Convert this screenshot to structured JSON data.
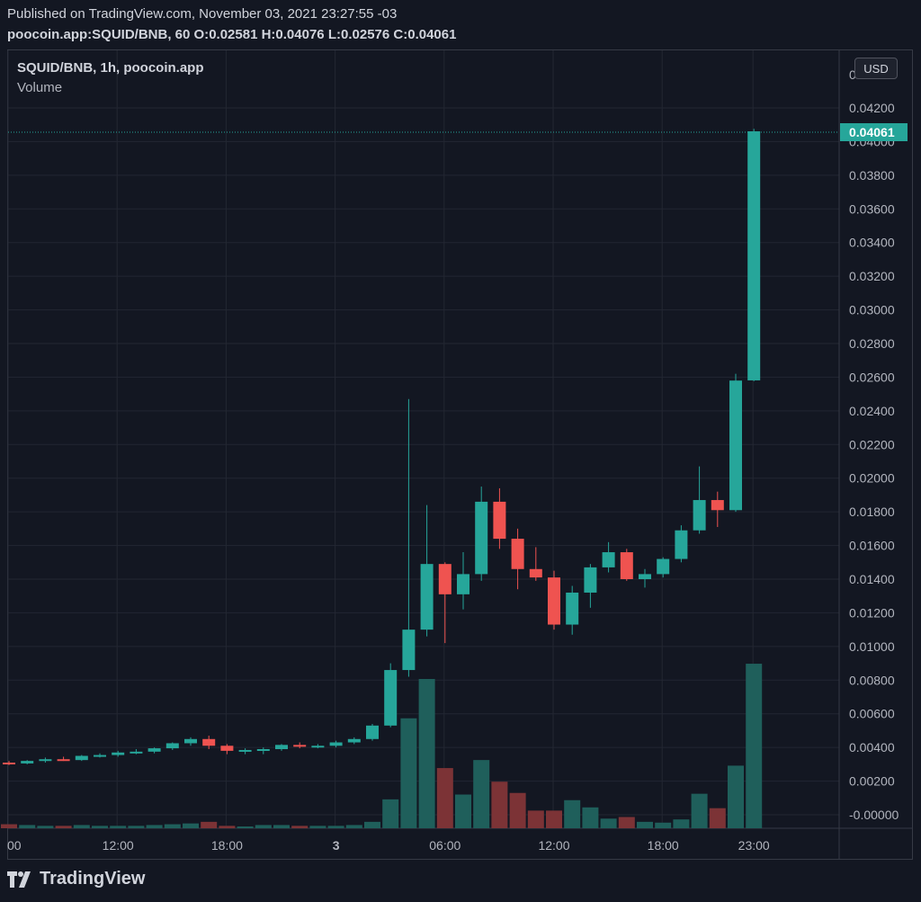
{
  "header": {
    "published": "Published on TradingView.com, November 03, 2021 23:27:55 -03",
    "symbol_line": "poocoin.app:SQUID/BNB, 60",
    "o_label": "O:",
    "o_value": "0.02581",
    "h_label": "H:",
    "h_value": "0.04076",
    "l_label": "L:",
    "l_value": "0.02576",
    "c_label": "C:",
    "c_value": "0.04061"
  },
  "legend": {
    "title": "SQUID/BNB, 1h, poocoin.app",
    "volume": "Volume"
  },
  "currency_button": "USD",
  "brand": "TradingView",
  "colors": {
    "background": "#131722",
    "up": "#26a69a",
    "down": "#ef5350",
    "volume_up": "#1f5f5b",
    "volume_down": "#7c3336",
    "grid": "#232732",
    "price_tag": "#26a69a"
  },
  "chart_data": {
    "type": "candlestick",
    "price_axis": {
      "ticks": [
        "0.04200",
        "0.04000",
        "0.03800",
        "0.03600",
        "0.03400",
        "0.03200",
        "0.03000",
        "0.02800",
        "0.02600",
        "0.02400",
        "0.02200",
        "0.02000",
        "0.01800",
        "0.01600",
        "0.01400",
        "0.01200",
        "0.01000",
        "0.00800",
        "0.00600",
        "0.00400",
        "0.00200",
        "-0.00000"
      ],
      "top_partial_label": "0",
      "last_price": "0.04061",
      "last_price_value": 0.04061
    },
    "time_axis": {
      "ticks": [
        {
          "label": "00",
          "index": 0
        },
        {
          "label": "12:00",
          "index": 6
        },
        {
          "label": "18:00",
          "index": 12
        },
        {
          "label": "3",
          "index": 18
        },
        {
          "label": "06:00",
          "index": 24
        },
        {
          "label": "12:00",
          "index": 30
        },
        {
          "label": "18:00",
          "index": 36
        },
        {
          "label": "23:00",
          "index": 41
        }
      ]
    },
    "candles": [
      {
        "o": 0.0031,
        "h": 0.0032,
        "l": 0.00295,
        "c": 0.00305,
        "v": 0.05,
        "up": false
      },
      {
        "o": 0.00305,
        "h": 0.00325,
        "l": 0.003,
        "c": 0.0032,
        "v": 0.04,
        "up": true
      },
      {
        "o": 0.0032,
        "h": 0.0034,
        "l": 0.0031,
        "c": 0.0033,
        "v": 0.03,
        "up": true
      },
      {
        "o": 0.0033,
        "h": 0.00345,
        "l": 0.0032,
        "c": 0.00325,
        "v": 0.03,
        "up": false
      },
      {
        "o": 0.00325,
        "h": 0.00355,
        "l": 0.0032,
        "c": 0.0035,
        "v": 0.04,
        "up": true
      },
      {
        "o": 0.0035,
        "h": 0.00365,
        "l": 0.0034,
        "c": 0.00355,
        "v": 0.03,
        "up": true
      },
      {
        "o": 0.00355,
        "h": 0.0038,
        "l": 0.00345,
        "c": 0.0037,
        "v": 0.03,
        "up": true
      },
      {
        "o": 0.0037,
        "h": 0.0039,
        "l": 0.0036,
        "c": 0.00375,
        "v": 0.03,
        "up": true
      },
      {
        "o": 0.00375,
        "h": 0.004,
        "l": 0.00365,
        "c": 0.00395,
        "v": 0.04,
        "up": true
      },
      {
        "o": 0.00395,
        "h": 0.0043,
        "l": 0.00385,
        "c": 0.00425,
        "v": 0.05,
        "up": true
      },
      {
        "o": 0.00425,
        "h": 0.0046,
        "l": 0.0041,
        "c": 0.0045,
        "v": 0.06,
        "up": true
      },
      {
        "o": 0.0045,
        "h": 0.0047,
        "l": 0.0039,
        "c": 0.0041,
        "v": 0.08,
        "up": false
      },
      {
        "o": 0.0041,
        "h": 0.0042,
        "l": 0.0036,
        "c": 0.0038,
        "v": 0.03,
        "up": false
      },
      {
        "o": 0.0038,
        "h": 0.00395,
        "l": 0.0036,
        "c": 0.00385,
        "v": 0.02,
        "up": true
      },
      {
        "o": 0.00385,
        "h": 0.004,
        "l": 0.0036,
        "c": 0.0039,
        "v": 0.04,
        "up": true
      },
      {
        "o": 0.0039,
        "h": 0.0042,
        "l": 0.0038,
        "c": 0.00415,
        "v": 0.04,
        "up": true
      },
      {
        "o": 0.00415,
        "h": 0.0043,
        "l": 0.00395,
        "c": 0.00405,
        "v": 0.03,
        "up": false
      },
      {
        "o": 0.00405,
        "h": 0.0042,
        "l": 0.00395,
        "c": 0.0041,
        "v": 0.03,
        "up": true
      },
      {
        "o": 0.0041,
        "h": 0.0044,
        "l": 0.004,
        "c": 0.0043,
        "v": 0.03,
        "up": true
      },
      {
        "o": 0.0043,
        "h": 0.0046,
        "l": 0.0042,
        "c": 0.0045,
        "v": 0.04,
        "up": true
      },
      {
        "o": 0.0045,
        "h": 0.0054,
        "l": 0.0044,
        "c": 0.0053,
        "v": 0.08,
        "up": true
      },
      {
        "o": 0.0053,
        "h": 0.009,
        "l": 0.0052,
        "c": 0.0086,
        "v": 0.36,
        "up": true
      },
      {
        "o": 0.0086,
        "h": 0.0247,
        "l": 0.0082,
        "c": 0.011,
        "v": 1.37,
        "up": true
      },
      {
        "o": 0.011,
        "h": 0.0184,
        "l": 0.0106,
        "c": 0.0149,
        "v": 1.86,
        "up": true
      },
      {
        "o": 0.0149,
        "h": 0.015,
        "l": 0.0102,
        "c": 0.0131,
        "v": 0.75,
        "up": false
      },
      {
        "o": 0.0131,
        "h": 0.0156,
        "l": 0.0122,
        "c": 0.0143,
        "v": 0.42,
        "up": true
      },
      {
        "o": 0.0143,
        "h": 0.0195,
        "l": 0.0139,
        "c": 0.0186,
        "v": 0.85,
        "up": true
      },
      {
        "o": 0.0186,
        "h": 0.0194,
        "l": 0.0158,
        "c": 0.0164,
        "v": 0.58,
        "up": false
      },
      {
        "o": 0.0164,
        "h": 0.017,
        "l": 0.0134,
        "c": 0.0146,
        "v": 0.44,
        "up": false
      },
      {
        "o": 0.0146,
        "h": 0.0159,
        "l": 0.0139,
        "c": 0.0141,
        "v": 0.22,
        "up": false
      },
      {
        "o": 0.0141,
        "h": 0.0145,
        "l": 0.011,
        "c": 0.0113,
        "v": 0.22,
        "up": false
      },
      {
        "o": 0.0113,
        "h": 0.0136,
        "l": 0.0107,
        "c": 0.0132,
        "v": 0.35,
        "up": true
      },
      {
        "o": 0.0132,
        "h": 0.0149,
        "l": 0.0123,
        "c": 0.0147,
        "v": 0.26,
        "up": true
      },
      {
        "o": 0.0147,
        "h": 0.0162,
        "l": 0.0144,
        "c": 0.0156,
        "v": 0.12,
        "up": true
      },
      {
        "o": 0.0156,
        "h": 0.0158,
        "l": 0.0139,
        "c": 0.014,
        "v": 0.14,
        "up": false
      },
      {
        "o": 0.014,
        "h": 0.0146,
        "l": 0.0135,
        "c": 0.0143,
        "v": 0.08,
        "up": true
      },
      {
        "o": 0.0143,
        "h": 0.0153,
        "l": 0.0141,
        "c": 0.0152,
        "v": 0.07,
        "up": true
      },
      {
        "o": 0.0152,
        "h": 0.0172,
        "l": 0.015,
        "c": 0.0169,
        "v": 0.11,
        "up": true
      },
      {
        "o": 0.0169,
        "h": 0.0207,
        "l": 0.0167,
        "c": 0.0187,
        "v": 0.43,
        "up": true
      },
      {
        "o": 0.0187,
        "h": 0.0192,
        "l": 0.0171,
        "c": 0.0181,
        "v": 0.25,
        "up": false
      },
      {
        "o": 0.0181,
        "h": 0.0262,
        "l": 0.018,
        "c": 0.0258,
        "v": 0.78,
        "up": true
      },
      {
        "o": 0.02581,
        "h": 0.04076,
        "l": 0.02576,
        "c": 0.04061,
        "v": 2.05,
        "up": true
      }
    ]
  }
}
